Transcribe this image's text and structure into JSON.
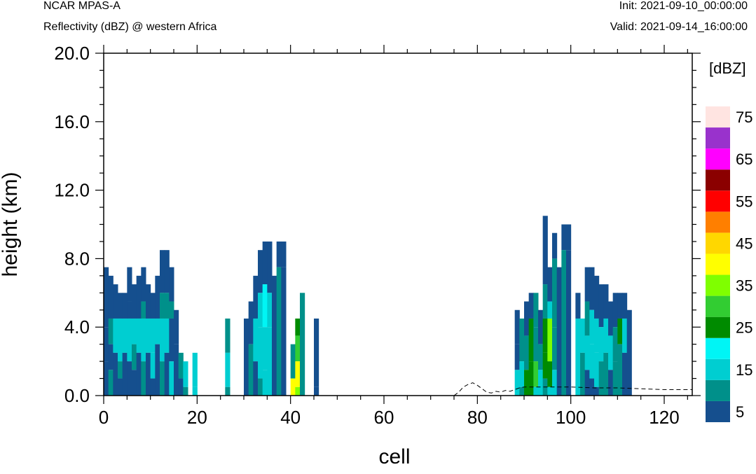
{
  "header": {
    "model": "NCAR MPAS-A",
    "field": "Reflectivity (dBZ) @ western Africa",
    "init": "Init: 2021-09-10_00:00:00",
    "valid": "Valid: 2021-09-14_16:00:00"
  },
  "chart_data": {
    "type": "heatmap",
    "title": "Reflectivity (dBZ) @ western Africa",
    "xlabel": "cell",
    "ylabel": "height (km)",
    "xlim": [
      0,
      126
    ],
    "ylim": [
      0,
      20
    ],
    "x_ticks": [
      "0",
      "20",
      "40",
      "60",
      "80",
      "100",
      "120"
    ],
    "x_tick_values": [
      0,
      20,
      40,
      60,
      80,
      100,
      120
    ],
    "y_ticks": [
      "0.0",
      "4.0",
      "8.0",
      "12.0",
      "16.0",
      "20.0"
    ],
    "y_tick_values": [
      0,
      4,
      8,
      12,
      16,
      20
    ],
    "colorbar": {
      "unit": "[dBZ]",
      "levels": [
        5,
        10,
        15,
        20,
        25,
        30,
        35,
        40,
        45,
        50,
        55,
        60,
        65,
        70,
        75
      ],
      "labels": [
        "5",
        "15",
        "25",
        "35",
        "45",
        "55",
        "65",
        "75"
      ],
      "colors": [
        "#154f8e",
        "#00908a",
        "#00ced1",
        "#00f5f5",
        "#008b00",
        "#32cd32",
        "#7fff00",
        "#ffff00",
        "#ffd700",
        "#ff7f00",
        "#ff0000",
        "#8b0000",
        "#ff00ff",
        "#9932cc",
        "#ffe4e1"
      ]
    },
    "cell_width": 1,
    "cell_height": 0.5,
    "cells": [
      [
        0,
        1,
        7.5,
        5
      ],
      [
        0,
        1,
        4.0,
        5
      ],
      [
        0,
        1,
        2.0,
        5
      ],
      [
        1,
        2,
        7.0,
        5
      ],
      [
        1,
        2,
        4.5,
        10
      ],
      [
        1,
        2,
        3.0,
        5
      ],
      [
        1,
        2,
        1.5,
        10
      ],
      [
        2,
        3,
        6.5,
        5
      ],
      [
        2,
        3,
        4.5,
        15
      ],
      [
        2,
        3,
        2.5,
        5
      ],
      [
        3,
        4,
        6.0,
        5
      ],
      [
        3,
        4,
        4.5,
        15
      ],
      [
        3,
        4,
        2.0,
        10
      ],
      [
        3,
        4,
        1.0,
        5
      ],
      [
        4,
        5,
        6.0,
        5
      ],
      [
        4,
        5,
        4.5,
        15
      ],
      [
        4,
        5,
        2.5,
        5
      ],
      [
        5,
        6,
        7.5,
        5
      ],
      [
        5,
        6,
        5.5,
        5
      ],
      [
        5,
        6,
        4.5,
        15
      ],
      [
        5,
        6,
        2.0,
        5
      ],
      [
        6,
        7,
        6.5,
        5
      ],
      [
        6,
        7,
        4.5,
        15
      ],
      [
        6,
        7,
        3.0,
        10
      ],
      [
        6,
        7,
        1.5,
        5
      ],
      [
        7,
        8,
        7.0,
        5
      ],
      [
        7,
        8,
        4.5,
        15
      ],
      [
        7,
        8,
        2.5,
        5
      ],
      [
        8,
        9,
        7.5,
        5
      ],
      [
        8,
        9,
        5.5,
        10
      ],
      [
        8,
        9,
        4.5,
        15
      ],
      [
        8,
        9,
        2.0,
        10
      ],
      [
        9,
        10,
        6.5,
        5
      ],
      [
        9,
        10,
        4.5,
        15
      ],
      [
        9,
        10,
        2.5,
        5
      ],
      [
        10,
        11,
        6.0,
        5
      ],
      [
        10,
        11,
        4.5,
        15
      ],
      [
        10,
        11,
        2.5,
        15
      ],
      [
        10,
        11,
        1.0,
        5
      ],
      [
        11,
        12,
        7.0,
        5
      ],
      [
        11,
        12,
        4.5,
        15
      ],
      [
        11,
        12,
        3.0,
        5
      ],
      [
        12,
        13,
        8.5,
        5
      ],
      [
        12,
        13,
        6.0,
        10
      ],
      [
        12,
        13,
        4.5,
        15
      ],
      [
        12,
        13,
        2.0,
        10
      ],
      [
        13,
        14,
        8.5,
        5
      ],
      [
        13,
        14,
        6.0,
        10
      ],
      [
        13,
        14,
        4.5,
        15
      ],
      [
        13,
        14,
        2.5,
        5
      ],
      [
        14,
        15,
        7.5,
        5
      ],
      [
        14,
        15,
        5.5,
        10
      ],
      [
        14,
        15,
        4.5,
        5
      ],
      [
        14,
        15,
        2.0,
        15
      ],
      [
        15,
        16,
        5.0,
        5
      ],
      [
        15,
        16,
        3.0,
        5
      ],
      [
        16,
        17,
        2.5,
        10
      ],
      [
        16,
        17,
        1.0,
        5
      ],
      [
        17,
        18,
        2.0,
        15
      ],
      [
        17,
        18,
        0.5,
        10
      ],
      [
        19,
        20,
        2.5,
        15
      ],
      [
        19,
        20,
        0.5,
        15
      ],
      [
        26,
        27,
        4.5,
        10
      ],
      [
        26,
        27,
        2.5,
        15
      ],
      [
        26,
        27,
        0.5,
        10
      ],
      [
        30,
        31,
        4.5,
        5
      ],
      [
        31,
        32,
        5.5,
        5
      ],
      [
        31,
        32,
        3.0,
        10
      ],
      [
        32,
        33,
        7.0,
        5
      ],
      [
        32,
        33,
        4.5,
        15
      ],
      [
        32,
        33,
        2.0,
        5
      ],
      [
        33,
        34,
        8.5,
        5
      ],
      [
        33,
        34,
        6.0,
        15
      ],
      [
        33,
        34,
        4.0,
        15
      ],
      [
        33,
        34,
        1.0,
        10
      ],
      [
        34,
        35,
        9.0,
        5
      ],
      [
        34,
        35,
        6.5,
        20
      ],
      [
        34,
        35,
        4.0,
        15
      ],
      [
        34,
        35,
        1.5,
        15
      ],
      [
        35,
        36,
        9.0,
        5
      ],
      [
        35,
        36,
        6.0,
        15
      ],
      [
        35,
        36,
        4.0,
        15
      ],
      [
        36,
        37,
        7.0,
        5
      ],
      [
        37,
        38,
        9.0,
        5
      ],
      [
        37,
        38,
        7.5,
        10
      ],
      [
        38,
        39,
        9.0,
        5
      ],
      [
        38,
        39,
        7.5,
        5
      ],
      [
        40,
        41,
        3.0,
        10
      ],
      [
        40,
        41,
        1.0,
        40
      ],
      [
        41,
        42,
        4.5,
        25
      ],
      [
        41,
        42,
        3.5,
        30
      ],
      [
        41,
        42,
        2.0,
        40
      ],
      [
        41,
        42,
        0.5,
        35
      ],
      [
        42,
        43,
        6.0,
        10
      ],
      [
        45,
        46,
        0.5,
        5
      ],
      [
        45,
        46,
        4.5,
        5
      ],
      [
        88,
        89,
        5.0,
        5
      ],
      [
        88,
        89,
        3.0,
        5
      ],
      [
        88,
        89,
        1.5,
        15
      ],
      [
        89,
        90,
        4.5,
        10
      ],
      [
        89,
        90,
        2.0,
        15
      ],
      [
        89,
        90,
        0.5,
        10
      ],
      [
        90,
        91,
        5.5,
        5
      ],
      [
        90,
        91,
        3.5,
        10
      ],
      [
        90,
        91,
        1.5,
        25
      ],
      [
        91,
        92,
        6.0,
        5
      ],
      [
        91,
        92,
        4.5,
        25
      ],
      [
        91,
        92,
        2.0,
        25
      ],
      [
        91,
        92,
        0.5,
        25
      ],
      [
        92,
        93,
        6.0,
        10
      ],
      [
        92,
        93,
        4.0,
        10
      ],
      [
        92,
        93,
        2.0,
        30
      ],
      [
        92,
        93,
        0.5,
        15
      ],
      [
        93,
        94,
        5.0,
        5
      ],
      [
        93,
        94,
        3.0,
        10
      ],
      [
        93,
        94,
        1.5,
        15
      ],
      [
        94,
        95,
        10.5,
        5
      ],
      [
        94,
        95,
        6.5,
        10
      ],
      [
        94,
        95,
        4.5,
        25
      ],
      [
        94,
        95,
        2.5,
        25
      ],
      [
        94,
        95,
        1.0,
        10
      ],
      [
        95,
        96,
        7.5,
        5
      ],
      [
        95,
        96,
        5.5,
        15
      ],
      [
        95,
        96,
        4.5,
        35
      ],
      [
        95,
        96,
        2.0,
        25
      ],
      [
        95,
        96,
        0.5,
        15
      ],
      [
        96,
        97,
        9.5,
        5
      ],
      [
        96,
        97,
        8.0,
        10
      ],
      [
        96,
        97,
        4.0,
        10
      ],
      [
        96,
        97,
        1.5,
        15
      ],
      [
        97,
        98,
        7.5,
        5
      ],
      [
        98,
        99,
        10.0,
        5
      ],
      [
        98,
        99,
        8.5,
        10
      ],
      [
        99,
        100,
        10.0,
        5
      ],
      [
        99,
        100,
        8.5,
        5
      ],
      [
        101,
        102,
        6.0,
        5
      ],
      [
        101,
        102,
        4.5,
        15
      ],
      [
        102,
        103,
        4.5,
        15
      ],
      [
        102,
        103,
        2.5,
        10
      ],
      [
        103,
        104,
        7.5,
        5
      ],
      [
        103,
        104,
        5.5,
        10
      ],
      [
        103,
        104,
        3.5,
        15
      ],
      [
        103,
        104,
        1.5,
        5
      ],
      [
        104,
        105,
        7.5,
        5
      ],
      [
        104,
        105,
        5.0,
        15
      ],
      [
        104,
        105,
        3.0,
        15
      ],
      [
        104,
        105,
        1.0,
        5
      ],
      [
        105,
        106,
        7.0,
        5
      ],
      [
        105,
        106,
        4.5,
        15
      ],
      [
        105,
        106,
        2.5,
        15
      ],
      [
        105,
        106,
        0.5,
        5
      ],
      [
        106,
        107,
        6.5,
        5
      ],
      [
        106,
        107,
        4.0,
        15
      ],
      [
        106,
        107,
        2.0,
        10
      ],
      [
        107,
        108,
        6.5,
        5
      ],
      [
        107,
        108,
        4.5,
        15
      ],
      [
        107,
        108,
        2.5,
        10
      ],
      [
        108,
        109,
        5.5,
        5
      ],
      [
        108,
        109,
        3.5,
        15
      ],
      [
        108,
        109,
        1.5,
        5
      ],
      [
        109,
        110,
        6.0,
        5
      ],
      [
        109,
        110,
        4.0,
        10
      ],
      [
        109,
        110,
        2.0,
        10
      ],
      [
        110,
        111,
        6.0,
        5
      ],
      [
        110,
        111,
        4.5,
        25
      ],
      [
        110,
        111,
        3.0,
        10
      ],
      [
        111,
        112,
        6.0,
        5
      ],
      [
        111,
        112,
        4.5,
        15
      ],
      [
        111,
        112,
        2.5,
        5
      ],
      [
        112,
        113,
        5.0,
        5
      ]
    ],
    "terrain": [
      [
        0,
        0.0
      ],
      [
        75,
        0.0
      ],
      [
        76,
        0.2
      ],
      [
        77,
        0.5
      ],
      [
        78,
        0.65
      ],
      [
        79,
        0.75
      ],
      [
        80,
        0.6
      ],
      [
        81,
        0.4
      ],
      [
        82,
        0.2
      ],
      [
        83,
        0.15
      ],
      [
        84,
        0.25
      ],
      [
        85,
        0.2
      ],
      [
        86,
        0.3
      ],
      [
        87,
        0.25
      ],
      [
        88,
        0.35
      ],
      [
        89,
        0.45
      ],
      [
        90,
        0.5
      ],
      [
        95,
        0.5
      ],
      [
        100,
        0.5
      ],
      [
        105,
        0.45
      ],
      [
        110,
        0.45
      ],
      [
        115,
        0.4
      ],
      [
        120,
        0.35
      ],
      [
        126,
        0.35
      ]
    ]
  }
}
